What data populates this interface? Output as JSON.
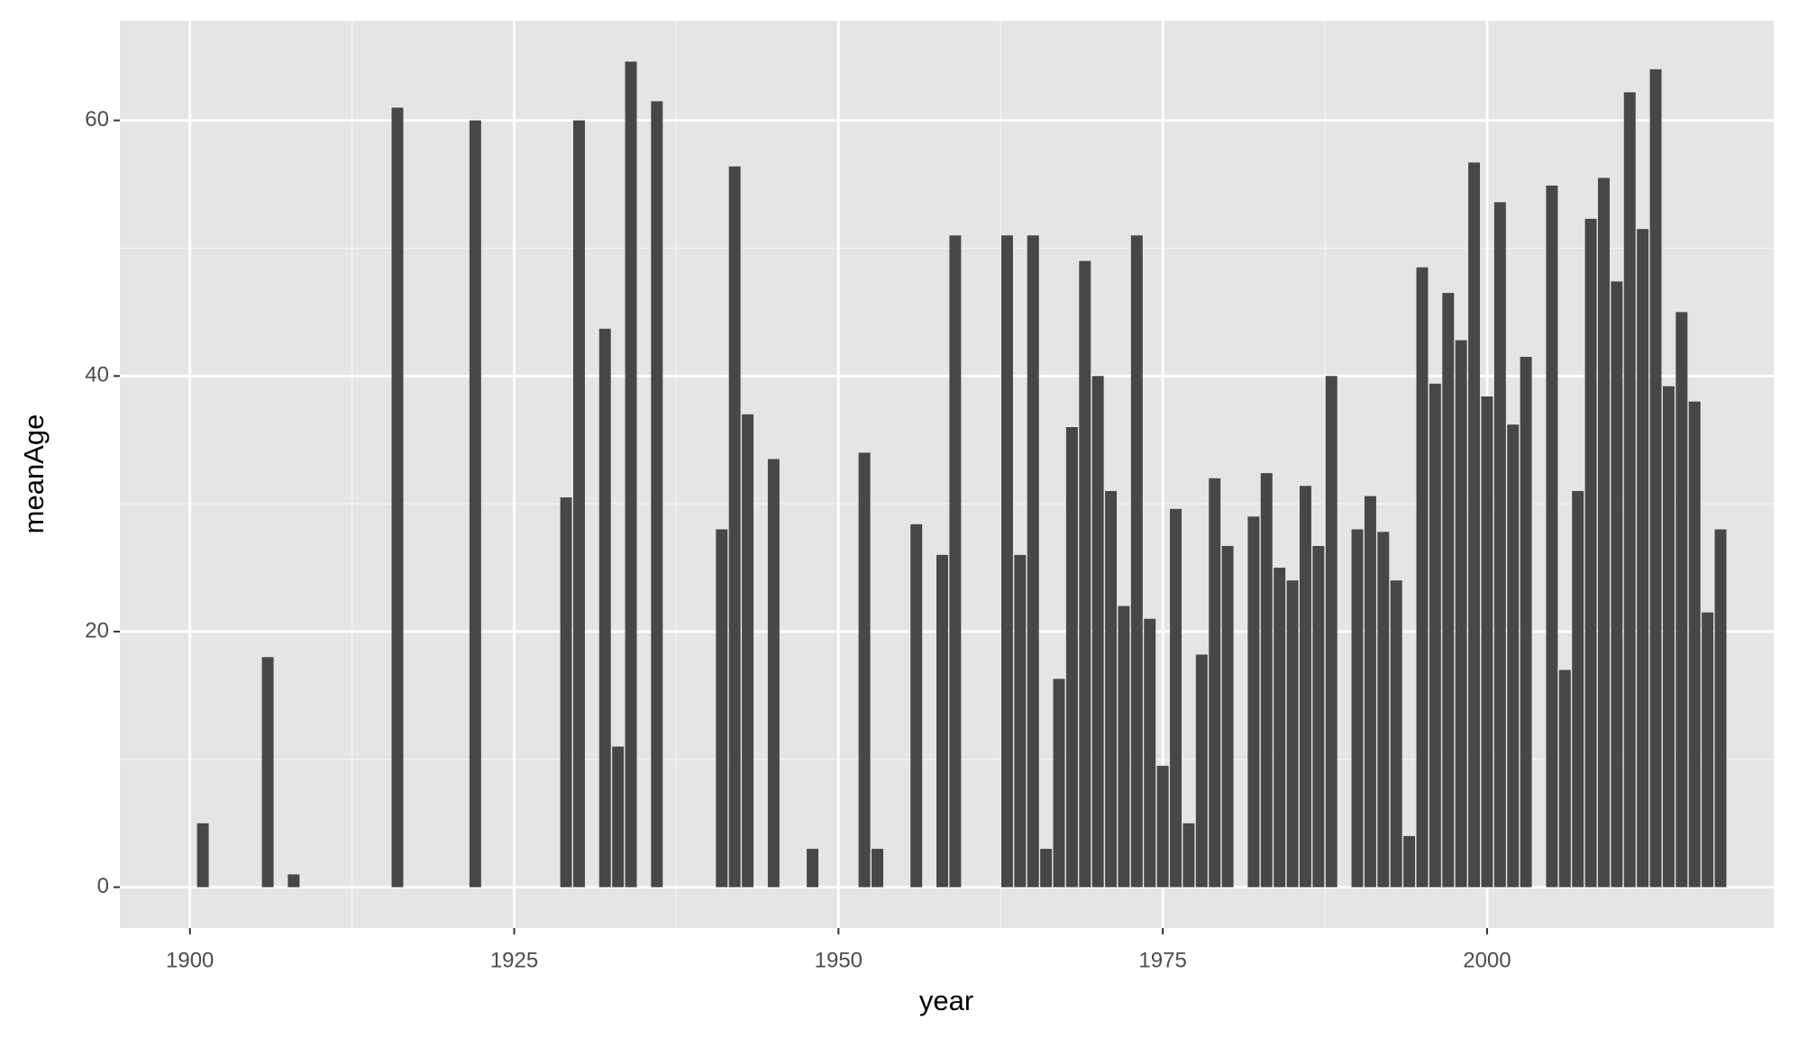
{
  "chart_data": {
    "type": "bar",
    "x_label": "year",
    "y_label": "meanAge",
    "x": [
      1901,
      1906,
      1908,
      1916,
      1922,
      1929,
      1930,
      1932,
      1933,
      1934,
      1936,
      1941,
      1942,
      1943,
      1945,
      1948,
      1952,
      1953,
      1956,
      1958,
      1959,
      1963,
      1964,
      1965,
      1966,
      1967,
      1968,
      1969,
      1970,
      1971,
      1972,
      1973,
      1974,
      1975,
      1976,
      1977,
      1978,
      1979,
      1980,
      1982,
      1983,
      1984,
      1985,
      1986,
      1987,
      1988,
      1990,
      1991,
      1992,
      1993,
      1994,
      1995,
      1996,
      1997,
      1998,
      1999,
      2000,
      2001,
      2002,
      2003,
      2005,
      2006,
      2007,
      2008,
      2009,
      2010,
      2011,
      2012,
      2013,
      2014,
      2015,
      2016,
      2017,
      2018
    ],
    "values": [
      5,
      18,
      1,
      61,
      60,
      30.5,
      60,
      43.7,
      11,
      64.6,
      61.5,
      28,
      56.4,
      37,
      33.5,
      3,
      34,
      3,
      28.4,
      26,
      51,
      51,
      26,
      51,
      3,
      16.3,
      36,
      49,
      40,
      31,
      22,
      51,
      21,
      9.5,
      29.6,
      5,
      18.2,
      32,
      26.7,
      29,
      32.4,
      25,
      24,
      31.4,
      26.7,
      40,
      28,
      30.6,
      27.8,
      24,
      4,
      48.5,
      39.4,
      46.5,
      42.8,
      56.7,
      38.4,
      53.6,
      36.2,
      41.5,
      54.9,
      17,
      31,
      52.3,
      55.5,
      47.4,
      62.2,
      51.5,
      64,
      39.2,
      45,
      38,
      21.5,
      28
    ],
    "color": "#474747",
    "xlim": [
      1894.6,
      2022.1
    ],
    "xticks": [
      1900,
      1925,
      1950,
      1975,
      2000
    ],
    "ylim": [
      -3.2,
      67.8
    ],
    "yticks": [
      0,
      20,
      40,
      60
    ],
    "grid": true
  }
}
